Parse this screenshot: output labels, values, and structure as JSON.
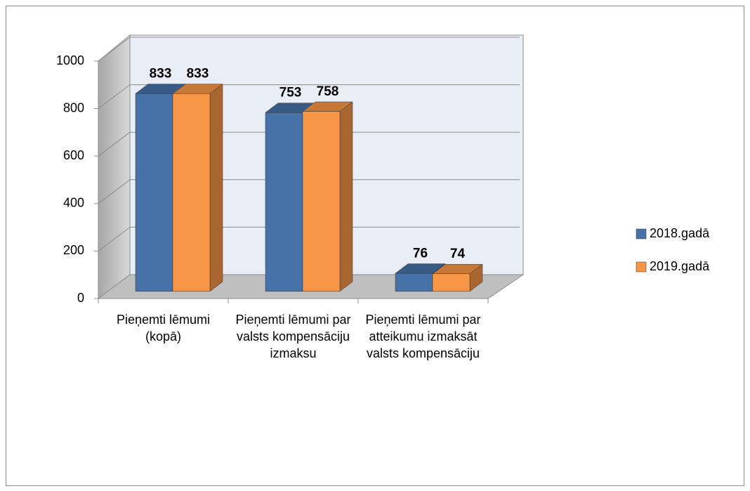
{
  "chart_data": {
    "type": "bar3d",
    "categories": [
      "Pieņemti lēmumi (kopā)",
      "Pieņemti lēmumi par valsts kompensāciju izmaksu",
      "Pieņemti lēmumi par atteikumu izmaksāt valsts kompensāciju"
    ],
    "series": [
      {
        "name": "2018.gadā",
        "color": "#4672a8",
        "values": [
          833,
          753,
          76
        ]
      },
      {
        "name": "2019.gadā",
        "color": "#f79646",
        "values": [
          833,
          758,
          74
        ]
      }
    ],
    "ylim": [
      0,
      1000
    ],
    "yticks": [
      0,
      200,
      400,
      600,
      800,
      1000
    ],
    "grid": true,
    "legend": "right"
  }
}
